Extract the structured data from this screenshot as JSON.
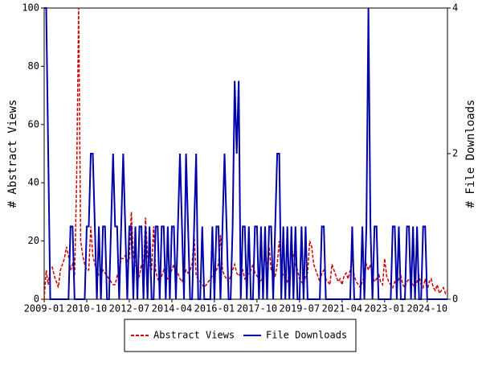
{
  "chart_data": {
    "type": "line",
    "x": [
      "2009-01",
      "2009-02",
      "2009-03",
      "2009-04",
      "2009-05",
      "2009-06",
      "2009-07",
      "2009-08",
      "2009-09",
      "2009-10",
      "2009-11",
      "2009-12",
      "2010-01",
      "2010-02",
      "2010-03",
      "2010-04",
      "2010-05",
      "2010-06",
      "2010-07",
      "2010-08",
      "2010-09",
      "2010-10",
      "2010-11",
      "2010-12",
      "2011-01",
      "2011-02",
      "2011-03",
      "2011-04",
      "2011-05",
      "2011-06",
      "2011-07",
      "2011-08",
      "2011-09",
      "2011-10",
      "2011-11",
      "2011-12",
      "2012-01",
      "2012-02",
      "2012-03",
      "2012-04",
      "2012-05",
      "2012-06",
      "2012-07",
      "2012-08",
      "2012-09",
      "2012-10",
      "2012-11",
      "2012-12",
      "2013-01",
      "2013-02",
      "2013-03",
      "2013-04",
      "2013-05",
      "2013-06",
      "2013-07",
      "2013-08",
      "2013-09",
      "2013-10",
      "2013-11",
      "2013-12",
      "2014-01",
      "2014-02",
      "2014-03",
      "2014-04",
      "2014-05",
      "2014-06",
      "2014-07",
      "2014-08",
      "2014-09",
      "2014-10",
      "2014-11",
      "2014-12",
      "2015-01",
      "2015-02",
      "2015-03",
      "2015-04",
      "2015-05",
      "2015-06",
      "2015-07",
      "2015-08",
      "2015-09",
      "2015-10",
      "2015-11",
      "2015-12",
      "2016-01",
      "2016-02",
      "2016-03",
      "2016-04",
      "2016-05",
      "2016-06",
      "2016-07",
      "2016-08",
      "2016-09",
      "2016-10",
      "2016-11",
      "2016-12",
      "2017-01",
      "2017-02",
      "2017-03",
      "2017-04",
      "2017-05",
      "2017-06",
      "2017-07",
      "2017-08",
      "2017-09",
      "2017-10",
      "2017-11",
      "2017-12",
      "2018-01",
      "2018-02",
      "2018-03",
      "2018-04",
      "2018-05",
      "2018-06",
      "2018-07",
      "2018-08",
      "2018-09",
      "2018-10",
      "2018-11",
      "2018-12",
      "2019-01",
      "2019-02",
      "2019-03",
      "2019-04",
      "2019-05",
      "2019-06",
      "2019-07",
      "2019-08",
      "2019-09",
      "2019-10",
      "2019-11",
      "2019-12",
      "2020-01",
      "2020-02",
      "2020-03",
      "2020-04",
      "2020-05",
      "2020-06",
      "2020-07",
      "2020-08",
      "2020-09",
      "2020-10",
      "2020-11",
      "2020-12",
      "2021-01",
      "2021-02",
      "2021-03",
      "2021-04",
      "2021-05",
      "2021-06",
      "2021-07",
      "2021-08",
      "2021-09",
      "2021-10",
      "2021-11",
      "2021-12",
      "2022-01",
      "2022-02",
      "2022-03",
      "2022-04",
      "2022-05",
      "2022-06",
      "2022-07",
      "2022-08",
      "2022-09",
      "2022-10",
      "2022-11",
      "2022-12",
      "2023-01",
      "2023-02",
      "2023-03",
      "2023-04",
      "2023-05",
      "2023-06",
      "2023-07",
      "2023-08",
      "2023-09",
      "2023-10",
      "2023-11",
      "2023-12",
      "2024-01",
      "2024-02",
      "2024-03",
      "2024-04",
      "2024-05",
      "2024-06",
      "2024-07",
      "2024-08",
      "2024-09",
      "2024-10",
      "2024-11",
      "2024-12",
      "2025-01",
      "2025-02",
      "2025-03",
      "2025-04",
      "2025-05",
      "2025-06",
      "2025-07",
      "2025-08"
    ],
    "series": [
      {
        "name": "Abstract Views",
        "color": "#cc0000",
        "dash": true,
        "values": [
          0,
          10,
          5,
          11,
          11,
          8,
          6,
          4,
          10,
          12,
          14,
          18,
          15,
          10,
          12,
          8,
          40,
          100,
          20,
          15,
          12,
          10,
          10,
          25,
          15,
          12,
          10,
          8,
          8,
          10,
          9,
          8,
          7,
          6,
          5,
          5,
          8,
          10,
          14,
          14,
          15,
          13,
          14,
          30,
          15,
          12,
          10,
          8,
          12,
          9,
          28,
          15,
          12,
          10,
          25,
          10,
          7,
          6,
          8,
          10,
          8,
          7,
          9,
          10,
          12,
          8,
          9,
          7,
          6,
          8,
          10,
          9,
          10,
          12,
          22,
          8,
          7,
          6,
          5,
          4,
          5,
          6,
          7,
          8,
          9,
          10,
          12,
          22,
          10,
          8,
          7,
          6,
          8,
          10,
          12,
          9,
          8,
          9,
          10,
          7,
          8,
          9,
          10,
          12,
          9,
          8,
          7,
          6,
          8,
          15,
          12,
          18,
          10,
          9,
          8,
          12,
          20,
          10,
          8,
          7,
          6,
          9,
          18,
          15,
          12,
          10,
          7,
          6,
          5,
          8,
          9,
          20,
          18,
          12,
          10,
          8,
          6,
          9,
          10,
          7,
          6,
          5,
          12,
          10,
          8,
          6,
          7,
          5,
          8,
          9,
          7,
          10,
          14,
          8,
          6,
          5,
          4,
          6,
          8,
          12,
          10,
          12,
          8,
          6,
          7,
          9,
          6,
          5,
          14,
          8,
          6,
          5,
          4,
          6,
          5,
          7,
          8,
          5,
          4,
          6,
          7,
          6,
          5,
          4,
          6,
          8,
          5,
          4,
          7,
          3,
          6,
          7,
          4,
          3,
          5,
          2,
          3,
          4,
          2,
          3
        ]
      },
      {
        "name": "File Downloads",
        "color": "#0000aa",
        "axis": "y2",
        "values": [
          4,
          4,
          2,
          0,
          0,
          0,
          0,
          0,
          0,
          0,
          0,
          0,
          0,
          1,
          1,
          0,
          0,
          0,
          0,
          0,
          0,
          1,
          1,
          2,
          2,
          1,
          0,
          1,
          0,
          1,
          1,
          0,
          0,
          1,
          2,
          1,
          1,
          0,
          1,
          2,
          1,
          0,
          1,
          1,
          0,
          1,
          0,
          1,
          1,
          0,
          1,
          0,
          1,
          0,
          0,
          1,
          1,
          0,
          1,
          1,
          0,
          1,
          0,
          1,
          1,
          0,
          1,
          2,
          1,
          0,
          2,
          1,
          0,
          0,
          1,
          2,
          0,
          0,
          1,
          0,
          0,
          0,
          0,
          1,
          0,
          1,
          1,
          0,
          1,
          2,
          1,
          0,
          0,
          1,
          3,
          2,
          3,
          0,
          1,
          1,
          0,
          1,
          0,
          0,
          1,
          1,
          0,
          1,
          0,
          1,
          0,
          1,
          1,
          0,
          1,
          2,
          2,
          0,
          1,
          0,
          1,
          0,
          1,
          0,
          1,
          0,
          0,
          1,
          0,
          1,
          0,
          0,
          0,
          0,
          0,
          0,
          0,
          1,
          1,
          0,
          0,
          0,
          0,
          0,
          0,
          0,
          0,
          0,
          0,
          0,
          0,
          0,
          1,
          0,
          0,
          0,
          0,
          1,
          0,
          1,
          4,
          1,
          0,
          1,
          1,
          0,
          0,
          0,
          0,
          0,
          0,
          0,
          1,
          1,
          0,
          1,
          0,
          0,
          0,
          1,
          1,
          0,
          1,
          0,
          1,
          0,
          0,
          1,
          1,
          0,
          0,
          0,
          0,
          0,
          0,
          0,
          0,
          0,
          0,
          0
        ]
      }
    ],
    "xticks": [
      "2009-01",
      "2010-10",
      "2012-07",
      "2014-04",
      "2016-01",
      "2017-10",
      "2019-07",
      "2021-04",
      "2023-01",
      "2024-10"
    ],
    "ylabel": "# Abstract Views",
    "ylim": [
      0,
      100
    ],
    "yticks": [
      0,
      20,
      40,
      60,
      80,
      100
    ],
    "y2label": "# File Downloads",
    "y2lim": [
      0,
      4
    ],
    "y2ticks": [
      0,
      2,
      4
    ]
  }
}
